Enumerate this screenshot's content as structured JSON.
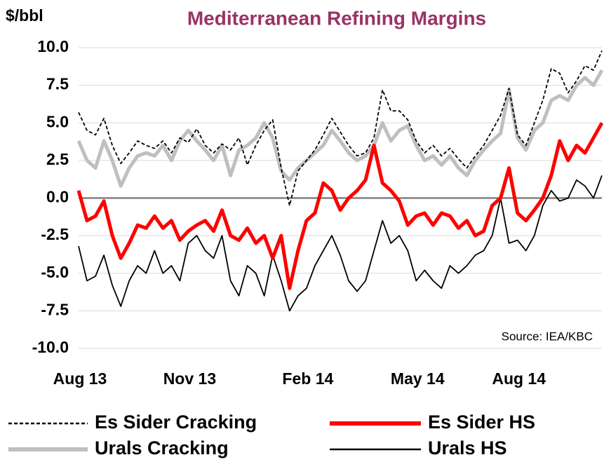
{
  "chart_data": {
    "type": "line",
    "title": "Mediterranean Refining Margins",
    "y_label": "$/bbl",
    "annotation": "Source:  IEA/KBC",
    "categories": [
      "Aug 13",
      null,
      null,
      null,
      null,
      null,
      null,
      null,
      null,
      null,
      null,
      null,
      null,
      "Nov 13",
      null,
      null,
      null,
      null,
      null,
      null,
      null,
      null,
      null,
      null,
      null,
      null,
      null,
      "Feb 14",
      null,
      null,
      null,
      null,
      null,
      null,
      null,
      null,
      null,
      null,
      null,
      null,
      "May 14",
      null,
      null,
      null,
      null,
      null,
      null,
      null,
      null,
      null,
      null,
      null,
      "Aug 14",
      null,
      null,
      null,
      null,
      null,
      null,
      null,
      null,
      null,
      null
    ],
    "ylim": [
      -10,
      10
    ],
    "yticks": [
      {
        "value": -10,
        "label": "-10.0"
      },
      -7.5,
      {
        "value": -5,
        "label": "-5.0"
      },
      -2.5,
      {
        "value": 0,
        "label": "0.0"
      },
      2.5,
      {
        "value": 5,
        "label": "5.0"
      },
      7.5,
      {
        "value": 10,
        "label": "10.0"
      }
    ],
    "grid": true,
    "legend": "bottom",
    "series": [
      {
        "name": "Es Sider Cracking",
        "color": "#000000",
        "dash": true,
        "weight": "thin",
        "values": [
          5.7,
          4.5,
          4.2,
          5.3,
          3.5,
          2.3,
          3.0,
          3.8,
          3.5,
          3.3,
          3.8,
          3.0,
          4.0,
          3.7,
          4.6,
          3.5,
          3.0,
          3.6,
          3.2,
          4.0,
          2.2,
          3.5,
          4.5,
          5.2,
          2.0,
          -0.5,
          1.8,
          2.5,
          3.2,
          4.2,
          5.3,
          4.4,
          3.5,
          2.8,
          3.0,
          4.0,
          7.2,
          5.8,
          5.8,
          5.2,
          3.8,
          3.0,
          3.5,
          2.8,
          3.3,
          2.6,
          2.0,
          2.8,
          3.5,
          4.5,
          5.5,
          7.3,
          4.2,
          3.5,
          5.0,
          6.5,
          8.6,
          8.3,
          7.0,
          7.8,
          8.8,
          8.5,
          9.8
        ]
      },
      {
        "name": "Es Sider HS",
        "color": "#ff0000",
        "dash": false,
        "weight": "thick",
        "values": [
          0.5,
          -1.5,
          -1.2,
          -0.2,
          -2.5,
          -4.0,
          -3.0,
          -1.8,
          -2.0,
          -1.2,
          -2.0,
          -1.5,
          -2.8,
          -2.2,
          -1.8,
          -1.5,
          -2.2,
          -0.8,
          -2.5,
          -2.8,
          -2.0,
          -3.0,
          -2.5,
          -4.0,
          -2.5,
          -6.0,
          -3.5,
          -1.5,
          -1.0,
          1.0,
          0.5,
          -0.8,
          0.0,
          0.5,
          1.2,
          3.5,
          1.0,
          0.5,
          -0.2,
          -1.8,
          -1.2,
          -1.0,
          -1.8,
          -1.0,
          -1.2,
          -2.0,
          -1.5,
          -2.5,
          -2.2,
          -0.5,
          0.0,
          2.0,
          -1.0,
          -1.5,
          -0.8,
          0.0,
          1.5,
          3.8,
          2.5,
          3.5,
          3.0,
          4.0,
          5.0
        ]
      },
      {
        "name": "Urals Cracking",
        "color": "#bfbfbf",
        "dash": false,
        "weight": "thick",
        "values": [
          3.8,
          2.5,
          2.0,
          3.8,
          2.5,
          0.8,
          2.0,
          2.8,
          3.0,
          2.8,
          3.5,
          2.5,
          3.8,
          4.5,
          3.8,
          3.2,
          2.5,
          3.5,
          1.5,
          3.2,
          3.5,
          4.0,
          5.0,
          4.0,
          1.8,
          1.2,
          2.0,
          2.5,
          3.0,
          3.5,
          4.5,
          3.8,
          3.0,
          2.5,
          2.8,
          3.5,
          5.0,
          3.8,
          4.5,
          4.8,
          3.5,
          2.5,
          2.8,
          2.2,
          2.8,
          2.0,
          1.5,
          2.5,
          3.2,
          3.8,
          4.3,
          7.2,
          4.0,
          3.2,
          4.5,
          5.0,
          6.5,
          6.8,
          6.5,
          7.5,
          8.0,
          7.5,
          8.5
        ]
      },
      {
        "name": "Urals HS",
        "color": "#000000",
        "dash": false,
        "weight": "thin",
        "values": [
          -3.2,
          -5.5,
          -5.2,
          -3.8,
          -5.8,
          -7.2,
          -5.5,
          -4.5,
          -5.0,
          -3.5,
          -5.0,
          -4.5,
          -5.5,
          -3.0,
          -2.5,
          -3.5,
          -4.0,
          -2.5,
          -5.5,
          -6.5,
          -4.5,
          -5.0,
          -6.5,
          -3.8,
          -5.5,
          -7.5,
          -6.5,
          -6.0,
          -4.5,
          -3.5,
          -2.5,
          -3.8,
          -5.5,
          -6.2,
          -5.5,
          -3.5,
          -1.5,
          -3.0,
          -2.5,
          -3.5,
          -5.5,
          -4.8,
          -5.5,
          -6.0,
          -4.5,
          -5.0,
          -4.5,
          -3.8,
          -3.5,
          -2.5,
          0.0,
          -3.0,
          -2.8,
          -3.5,
          -2.5,
          -0.5,
          0.5,
          -0.2,
          0.0,
          1.2,
          0.8,
          0.0,
          1.5
        ]
      }
    ]
  }
}
